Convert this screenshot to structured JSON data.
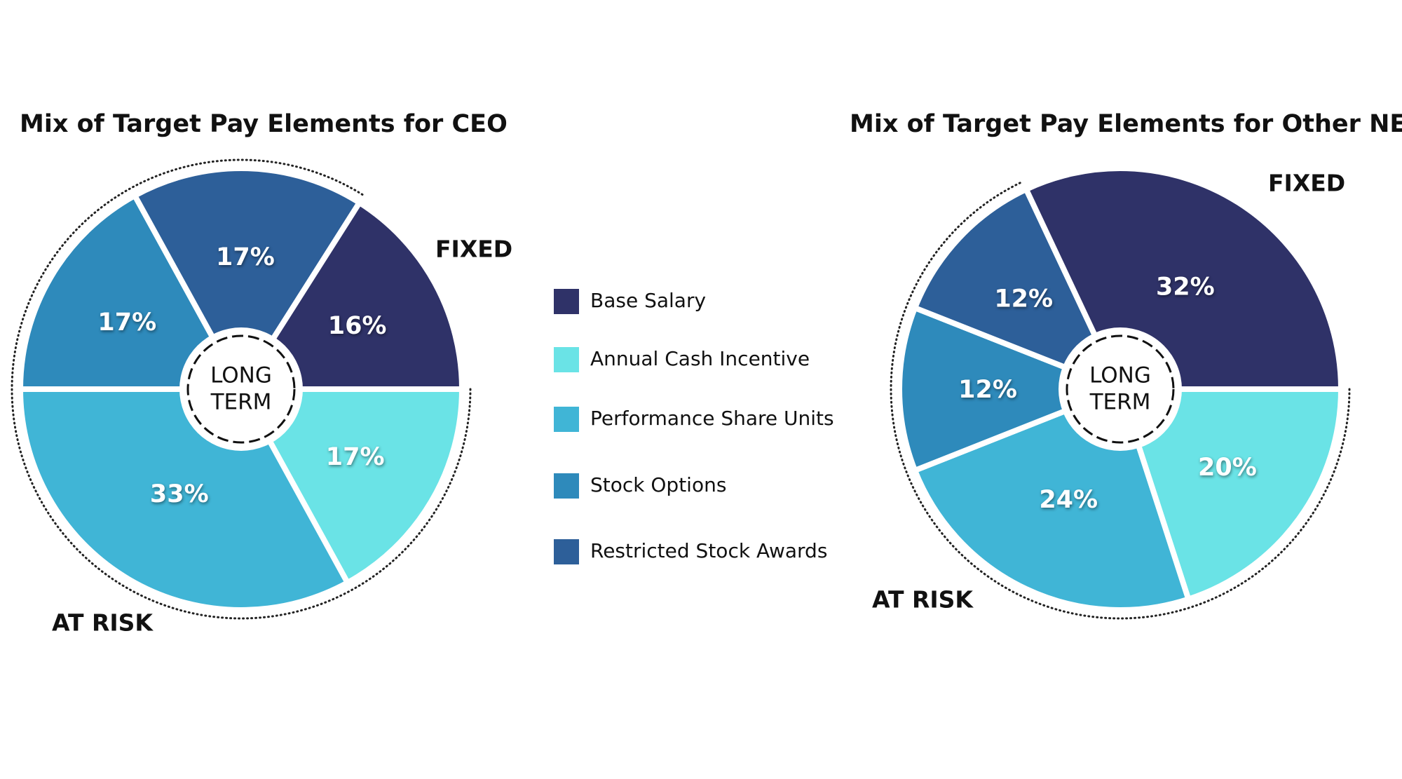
{
  "chart_data": [
    {
      "type": "pie",
      "title": "Mix of Target Pay Elements for CEO",
      "categories": [
        "Base Salary",
        "Annual Cash Incentive",
        "Performance Share Units",
        "Stock Options",
        "Restricted Stock Awards"
      ],
      "colors": [
        "#2f3268",
        "#6ae3e6",
        "#40b5d6",
        "#2e8abb",
        "#2d5f99"
      ],
      "values": [
        16,
        17,
        33,
        17,
        17
      ],
      "value_labels": [
        "16%",
        "17%",
        "33%",
        "17%",
        "17%"
      ],
      "annotations": {
        "fixed": "FIXED",
        "at_risk": "AT RISK",
        "center": [
          "LONG",
          "TERM"
        ]
      }
    },
    {
      "type": "pie",
      "title": "Mix of Target Pay Elements for Other NEOs",
      "values": [
        32,
        20,
        24,
        12,
        12
      ],
      "value_labels": [
        "32%",
        "20%",
        "24%",
        "12%",
        "12%"
      ],
      "annotations": {
        "fixed": "FIXED",
        "at_risk": "AT RISK",
        "center": [
          "LONG",
          "TERM"
        ]
      }
    }
  ]
}
